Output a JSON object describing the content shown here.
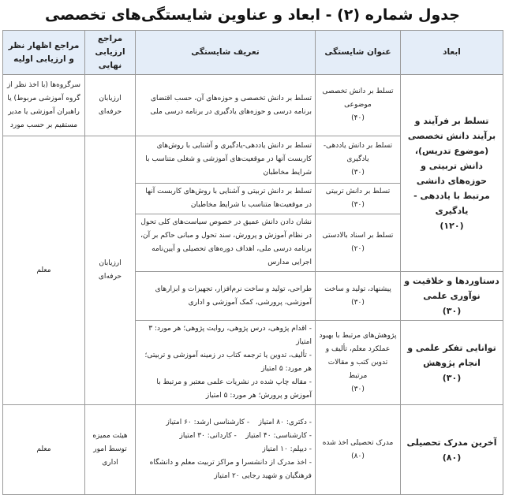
{
  "title": "جدول شماره (۲) - ابعاد و عناوین شایستگی‌های تخصصی",
  "headers": [
    "ابعاد",
    "عنوان شایستگی",
    "تعریف شایستگی",
    "مراجع ارزیابی نهایی",
    "مراجع اظهار نظر و ارزیابی اولیه"
  ],
  "dimensions": [
    {
      "name": "تسلط بر فرآیند و برآیند دانش تخصصی (موضوع تدریس)، دانش تربیتی و حوزه‌های دانشی مرتبط با یاددهی - یادگیری",
      "score": "(۱۲۰)"
    },
    {
      "name": "دستاوردها و خلاقیت و نوآوری علمی",
      "score": "(۳۰)"
    },
    {
      "name": "توانایی تفکر علمی و انجام پژوهش",
      "score": "(۳۰)"
    },
    {
      "name": "آخرین مدرک تحصیلی",
      "score": "(۸۰)"
    }
  ],
  "rows": [
    {
      "title": "تسلط بر دانش تخصصی موضوعی",
      "score": "(۴۰)",
      "definition": "تسلط بر دانش تخصصی و حوزه‌های آن، حسب اقتضای برنامه درسی و حوزه‌های یادگیری در برنامه درسی ملی"
    },
    {
      "title": "تسلط بر دانش یاددهی- یادگیری",
      "score": "(۳۰)",
      "definition": "تسلط بر دانش یاددهی-یادگیری و آشنایی با روش‌های کاربست آنها در موقعیت‌های آموزشی و شغلی متناسب با شرایط مخاطبان"
    },
    {
      "title": "تسلط بر دانش تربیتی",
      "score": "(۳۰)",
      "definition": "تسلط بر دانش تربیتی و آشنایی با روش‌های کاربست آنها در موقعیت‌ها متناسب با شرایط مخاطبان"
    },
    {
      "title": "تسلط بر اسناد بالادستی",
      "score": "(۲۰)",
      "definition": "نشان دادن دانش عمیق در خصوص سیاست‌های کلی تحول در نظام آموزش و پرورش، سند تحول و مبانی حاکم بر آن، برنامه درسی ملی، اهداف دوره‌های تحصیلی و آیین‌نامه اجرایی مدارس"
    },
    {
      "title": "پیشنهاد، تولید و ساخت",
      "score": "(۳۰)",
      "definition": "طراحی، تولید و ساخت نرم‌افزار، تجهیزات و ابزارهای آموزشی، پرورشی، کمک آموزشی و اداری"
    },
    {
      "title": "پژوهش‌های مرتبط با بهبود عملکرد معلم، تألیف و تدوین کتب و مقالات مرتبط",
      "score": "(۳۰)",
      "definition_lines": [
        "- اقدام پژوهی، درس پژوهی، روایت پژوهی؛ هر مورد: ۳ امتیاز",
        "- تألیف، تدوین یا ترجمه کتاب در زمینه آموزشی و تربیتی؛ هر مورد: ۵ امتیاز",
        "- مقاله چاپ شده در نشریات علمی معتبر و مرتبط با آموزش و پرورش؛ هر مورد: ۵ امتیاز"
      ]
    },
    {
      "title": "مدرک تحصیلی اخذ شده",
      "score": "(۸۰)",
      "definition_lines": [
        "- دکتری: ۸۰ امتیاز    - کارشناسی ارشد: ۶۰ امتیاز",
        "- کارشناسی: ۴۰ امتیاز    - کاردانی: ۳۰ امتیاز",
        "- دیپلم: ۱۰ امتیاز",
        "- اخذ مدرک از دانشسرا و مراکز تربیت معلم و دانشگاه فرهنگیان و شهید رجایی ۲۰ امتیاز"
      ]
    }
  ],
  "final_refs": [
    "ارزیابان حرفه‌ای",
    "ارزیابان حرفه‌ای",
    "هیئت ممیزه توسط امور اداری"
  ],
  "initial_refs": [
    "سرگروه‌ها (با اخذ نظر از گروه آموزشی مربوط) یا راهبران آموزشی یا مدیر مستقیم بر حسب مورد",
    "معلم",
    "معلم"
  ]
}
